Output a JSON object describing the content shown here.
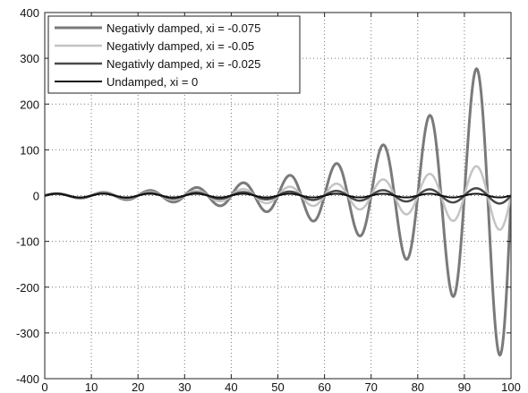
{
  "chart_data": {
    "type": "line",
    "title": "",
    "xlabel": "",
    "ylabel": "",
    "xlim": [
      0,
      100
    ],
    "ylim": [
      -400,
      400
    ],
    "xticks": [
      0,
      10,
      20,
      30,
      40,
      50,
      60,
      70,
      80,
      90,
      100
    ],
    "yticks": [
      -400,
      -300,
      -200,
      -100,
      0,
      100,
      200,
      300,
      400
    ],
    "grid": true,
    "legend_position": "top-left",
    "series": [
      {
        "name": "Negativly damped, xi = -0.075",
        "color": "#7a7a7a",
        "amplitude": 4,
        "growth_rate": 0.0458,
        "period": 10,
        "phase": 0
      },
      {
        "name": "Negativly damped, xi = -0.05",
        "color": "#c4c4c4",
        "amplitude": 4,
        "growth_rate": 0.03,
        "period": 10,
        "phase": 0
      },
      {
        "name": "Negativly damped, xi = -0.025",
        "color": "#4a4a4a",
        "amplitude": 4,
        "growth_rate": 0.015,
        "period": 10,
        "phase": 0
      },
      {
        "name": "Undamped, xi = 0",
        "color": "#111111",
        "amplitude": 4,
        "growth_rate": 0,
        "period": 10,
        "phase": 0
      }
    ]
  }
}
